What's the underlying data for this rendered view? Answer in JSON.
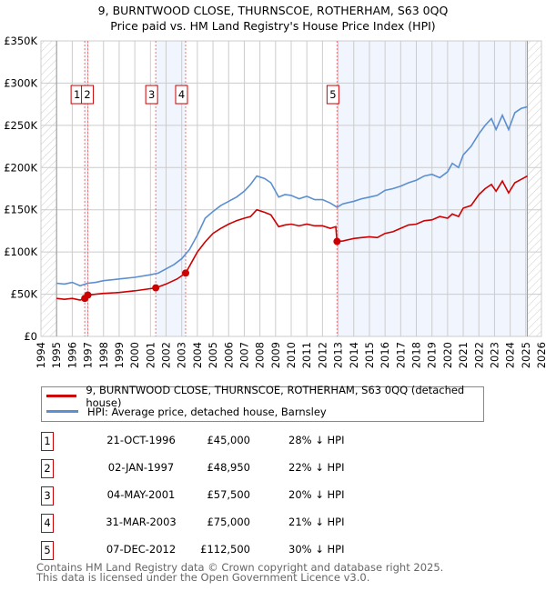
{
  "title": "9, BURNTWOOD CLOSE, THURNSCOE, ROTHERHAM, S63 0QQ",
  "subtitle": "Price paid vs. HM Land Registry's House Price Index (HPI)",
  "chart_data": {
    "type": "line",
    "xlim": [
      1994,
      2026
    ],
    "ylim": [
      0,
      350000
    ],
    "yticks": [
      {
        "v": 0,
        "label": "£0"
      },
      {
        "v": 50000,
        "label": "£50K"
      },
      {
        "v": 100000,
        "label": "£100K"
      },
      {
        "v": 150000,
        "label": "£150K"
      },
      {
        "v": 200000,
        "label": "£200K"
      },
      {
        "v": 250000,
        "label": "£250K"
      },
      {
        "v": 300000,
        "label": "£300K"
      },
      {
        "v": 350000,
        "label": "£350K"
      }
    ],
    "xticks": [
      "1994",
      "1995",
      "1996",
      "1997",
      "1998",
      "1999",
      "2000",
      "2001",
      "2002",
      "2003",
      "2004",
      "2005",
      "2006",
      "2007",
      "2008",
      "2009",
      "2010",
      "2011",
      "2012",
      "2013",
      "2014",
      "2015",
      "2016",
      "2017",
      "2018",
      "2019",
      "2020",
      "2021",
      "2022",
      "2023",
      "2024",
      "2025",
      "2026"
    ],
    "series": [
      {
        "name": "9, BURNTWOOD CLOSE, THURNSCOE, ROTHERHAM, S63 0QQ (detached house)",
        "color": "#cc0000",
        "x": [
          1995,
          1995.5,
          1996,
          1996.5,
          1996.8,
          1997,
          1997.5,
          1998,
          1999,
          2000,
          2001.34,
          2002,
          2002.7,
          2003.25,
          2003.7,
          2004,
          2004.5,
          2005,
          2005.5,
          2006,
          2006.5,
          2007,
          2007.4,
          2007.8,
          2008.3,
          2008.7,
          2009.2,
          2009.6,
          2010,
          2010.5,
          2011,
          2011.5,
          2012,
          2012.5,
          2012.85,
          2012.93,
          2013.3,
          2014,
          2014.5,
          2015,
          2015.5,
          2016,
          2016.5,
          2017,
          2017.5,
          2018,
          2018.5,
          2019,
          2019.5,
          2020,
          2020.3,
          2020.7,
          2021,
          2021.5,
          2022,
          2022.4,
          2022.8,
          2023.1,
          2023.5,
          2023.9,
          2024.3,
          2024.7,
          2025.1
        ],
        "y": [
          45000,
          44000,
          45000,
          43000,
          45000,
          48950,
          50000,
          51000,
          52000,
          54000,
          57500,
          62000,
          68000,
          75000,
          90000,
          100000,
          112000,
          122000,
          128000,
          133000,
          137000,
          140000,
          142000,
          150000,
          147000,
          144000,
          130000,
          132000,
          133000,
          131000,
          133000,
          131000,
          131000,
          128000,
          130000,
          112500,
          113000,
          116000,
          117000,
          118000,
          117000,
          122000,
          124000,
          128000,
          132000,
          133000,
          137000,
          138000,
          142000,
          140000,
          145000,
          142000,
          152000,
          155000,
          168000,
          175000,
          180000,
          172000,
          184000,
          170000,
          182000,
          186000,
          190000
        ]
      },
      {
        "name": "HPI: Average price, detached house, Barnsley",
        "color": "#5b8fd0",
        "x": [
          1995,
          1995.5,
          1996,
          1996.5,
          1997,
          1997.5,
          1998,
          1999,
          2000,
          2001,
          2001.5,
          2002,
          2002.5,
          2003,
          2003.5,
          2004,
          2004.5,
          2005,
          2005.5,
          2006,
          2006.5,
          2007,
          2007.4,
          2007.8,
          2008.3,
          2008.7,
          2009.2,
          2009.6,
          2010,
          2010.5,
          2011,
          2011.5,
          2012,
          2012.5,
          2012.93,
          2013.3,
          2014,
          2014.5,
          2015,
          2015.5,
          2016,
          2016.5,
          2017,
          2017.5,
          2018,
          2018.5,
          2019,
          2019.5,
          2020,
          2020.3,
          2020.7,
          2021,
          2021.5,
          2022,
          2022.4,
          2022.8,
          2023.1,
          2023.5,
          2023.9,
          2024.3,
          2024.7,
          2025.1
        ],
        "y": [
          63000,
          62000,
          64000,
          60000,
          63000,
          64000,
          66000,
          68000,
          70000,
          73000,
          75000,
          80000,
          85000,
          92000,
          103000,
          120000,
          140000,
          148000,
          155000,
          160000,
          165000,
          172000,
          180000,
          190000,
          187000,
          182000,
          165000,
          168000,
          167000,
          163000,
          166000,
          162000,
          162000,
          158000,
          153000,
          157000,
          160000,
          163000,
          165000,
          167000,
          173000,
          175000,
          178000,
          182000,
          185000,
          190000,
          192000,
          188000,
          195000,
          205000,
          200000,
          215000,
          225000,
          240000,
          250000,
          258000,
          245000,
          262000,
          245000,
          265000,
          270000,
          272000
        ]
      }
    ],
    "shaded_periods": [
      [
        1996.8,
        1997.0
      ],
      [
        2001.34,
        2003.25
      ],
      [
        2012.93,
        2025.1
      ]
    ],
    "sales": [
      {
        "n": "1",
        "x": 1996.8,
        "date": "21-OCT-1996",
        "price": "£45,000",
        "value": 45000,
        "hpi": "28% ↓ HPI"
      },
      {
        "n": "2",
        "x": 1997.0,
        "date": "02-JAN-1997",
        "price": "£48,950",
        "value": 48950,
        "hpi": "22% ↓ HPI"
      },
      {
        "n": "3",
        "x": 2001.34,
        "date": "04-MAY-2001",
        "price": "£57,500",
        "value": 57500,
        "hpi": "20% ↓ HPI"
      },
      {
        "n": "4",
        "x": 2003.25,
        "date": "31-MAR-2003",
        "price": "£75,000",
        "value": 75000,
        "hpi": "21% ↓ HPI"
      },
      {
        "n": "5",
        "x": 2012.93,
        "date": "07-DEC-2012",
        "price": "£112,500",
        "value": 112500,
        "hpi": "30% ↓ HPI"
      }
    ]
  },
  "legend": {
    "property": "9, BURNTWOOD CLOSE, THURNSCOE, ROTHERHAM, S63 0QQ (detached house)",
    "hpi": "HPI: Average price, detached house, Barnsley"
  },
  "footer": {
    "line1": "Contains HM Land Registry data © Crown copyright and database right 2025.",
    "line2": "This data is licensed under the Open Government Licence v3.0."
  }
}
